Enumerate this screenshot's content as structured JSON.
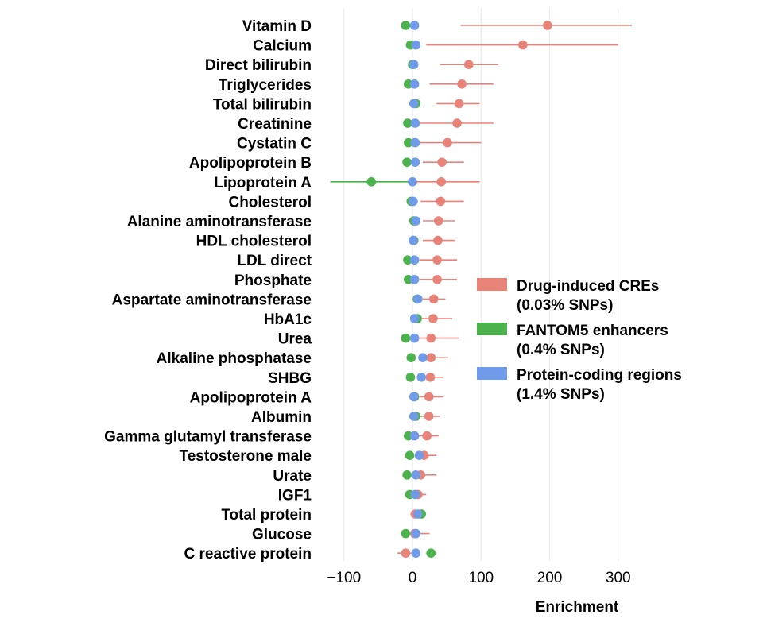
{
  "chart_data": {
    "type": "scatter",
    "title": "",
    "xlabel": "Enrichment",
    "ylabel": "",
    "xlim": [
      -130,
      335
    ],
    "xticks": [
      -100,
      0,
      100,
      200,
      300
    ],
    "xtick_labels": [
      "−100",
      "0",
      "100",
      "200",
      "300"
    ],
    "grid": "vertical",
    "legend_position": "right",
    "colors": {
      "Drug-induced CREs": "#e8837a",
      "FANTOM5 enhancers": "#4cb34c",
      "Protein-coding regions": "#6f9be8"
    },
    "categories": [
      "Vitamin D",
      "Calcium",
      "Direct bilirubin",
      "Triglycerides",
      "Total bilirubin",
      "Creatinine",
      "Cystatin C",
      "Apolipoprotein B",
      "Lipoprotein A",
      "Cholesterol",
      "Alanine aminotransferase",
      "HDL cholesterol",
      "LDL direct",
      "Phosphate",
      "Aspartate aminotransferase",
      "HbA1c",
      "Urea",
      "Alkaline phosphatase",
      "SHBG",
      "Apolipoprotein A",
      "Albumin",
      "Gamma glutamyl transferase",
      "Testosterone male",
      "Urate",
      "IGF1",
      "Total protein",
      "Glucose",
      "C reactive protein"
    ],
    "series": [
      {
        "name": "Drug-induced CREs",
        "legend_lines": [
          "Drug-induced CREs",
          "(0.03% SNPs)"
        ],
        "values": [
          197,
          161,
          82,
          72,
          68,
          65,
          51,
          43,
          42,
          41,
          38,
          37,
          36,
          36,
          31,
          30,
          27,
          27,
          26,
          24,
          24,
          21,
          17,
          12,
          8,
          4,
          3,
          -10
        ],
        "ci_low": [
          70,
          20,
          40,
          25,
          35,
          10,
          10,
          15,
          -5,
          12,
          15,
          15,
          10,
          10,
          15,
          10,
          0,
          10,
          10,
          10,
          10,
          5,
          5,
          -5,
          0,
          -3,
          -5,
          -22
        ],
        "ci_high": [
          320,
          300,
          125,
          118,
          98,
          118,
          100,
          75,
          98,
          75,
          62,
          62,
          65,
          65,
          48,
          58,
          68,
          52,
          45,
          45,
          40,
          38,
          35,
          35,
          20,
          15,
          25,
          3
        ]
      },
      {
        "name": "FANTOM5 enhancers",
        "legend_lines": [
          "FANTOM5 enhancers",
          "(0.4% SNPs)"
        ],
        "values": [
          -10,
          -3,
          0,
          -6,
          5,
          -7,
          -6,
          -8,
          -60,
          -2,
          2,
          2,
          -7,
          -6,
          7,
          7,
          -10,
          -2,
          -3,
          3,
          5,
          -6,
          -4,
          -8,
          -4,
          13,
          -10,
          27
        ],
        "ci_low": [
          -10,
          -3,
          0,
          -6,
          5,
          -7,
          -6,
          -8,
          -120,
          -2,
          2,
          2,
          -7,
          -6,
          7,
          7,
          -10,
          -2,
          -3,
          3,
          5,
          -6,
          -4,
          -8,
          -4,
          13,
          -10,
          20
        ],
        "ci_high": [
          -10,
          -3,
          0,
          -6,
          5,
          -7,
          -6,
          -8,
          0,
          -2,
          2,
          2,
          -7,
          -6,
          7,
          7,
          -10,
          -2,
          -3,
          3,
          5,
          -6,
          -4,
          -8,
          -4,
          13,
          -10,
          35
        ]
      },
      {
        "name": "Protein-coding regions",
        "legend_lines": [
          "Protein-coding regions",
          "(1.4% SNPs)"
        ],
        "values": [
          3,
          5,
          2,
          3,
          2,
          4,
          4,
          4,
          0,
          1,
          5,
          1,
          3,
          3,
          8,
          3,
          3,
          15,
          13,
          2,
          2,
          3,
          10,
          5,
          4,
          8,
          5,
          5
        ],
        "ci_low": [
          3,
          5,
          2,
          3,
          2,
          4,
          4,
          4,
          0,
          1,
          5,
          1,
          3,
          3,
          8,
          3,
          3,
          15,
          13,
          2,
          2,
          3,
          10,
          5,
          4,
          8,
          5,
          5
        ],
        "ci_high": [
          3,
          5,
          2,
          3,
          2,
          4,
          4,
          4,
          0,
          1,
          5,
          1,
          3,
          3,
          8,
          3,
          3,
          15,
          13,
          2,
          2,
          3,
          10,
          5,
          4,
          8,
          5,
          5
        ]
      }
    ]
  }
}
